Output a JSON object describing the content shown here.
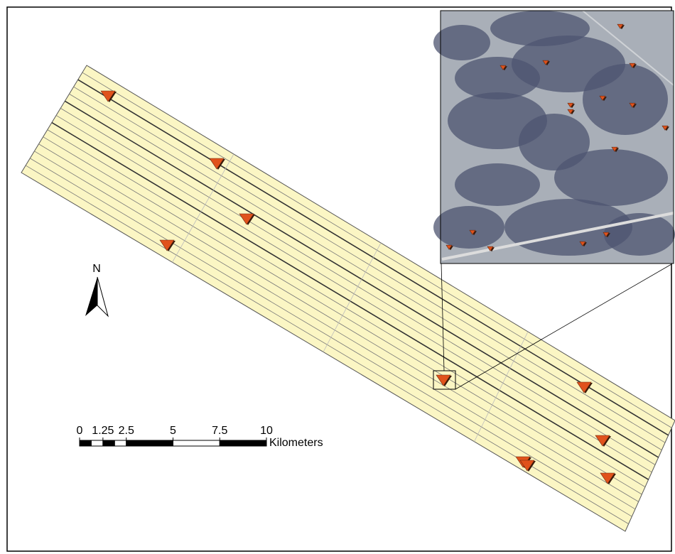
{
  "north_label": "N",
  "scale_bar": {
    "ticks": [
      0,
      1.25,
      2.5,
      5,
      7.5,
      10
    ],
    "unit": "Kilometers"
  }
}
